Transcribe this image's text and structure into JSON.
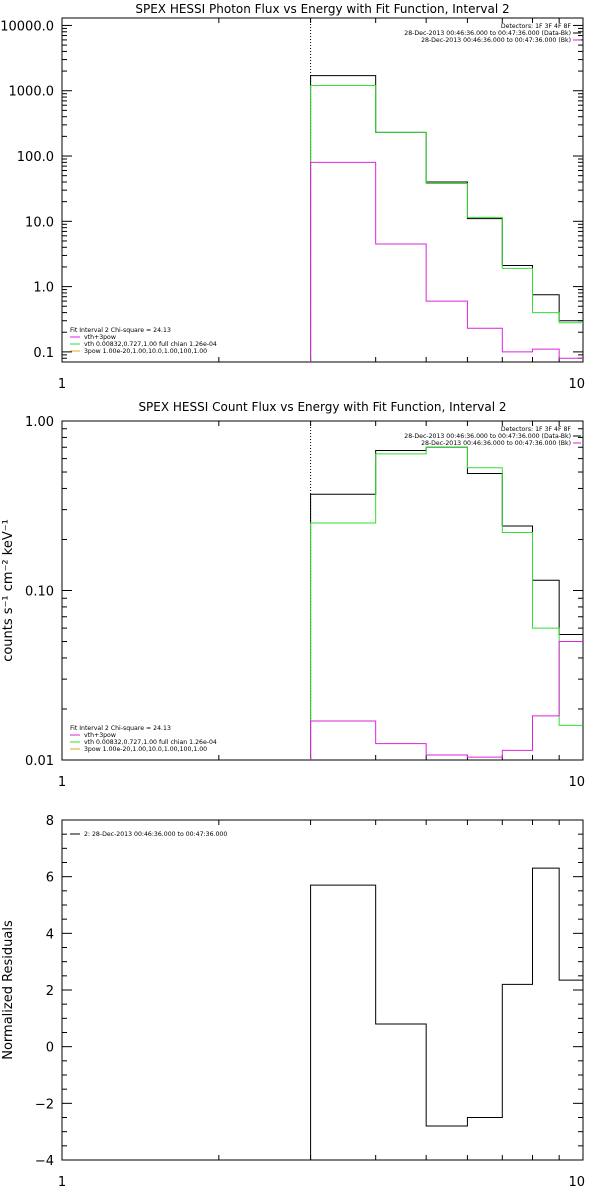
{
  "colors": {
    "black": "#000000",
    "green": "#33dd33",
    "magenta": "#dd22dd"
  },
  "chart_data": [
    {
      "type": "line",
      "title": "SPEX HESSI Photon Flux vs Energy with Fit Function, Interval 2",
      "xlabel": "",
      "ylabel": "",
      "xscale": "log",
      "yscale": "log",
      "xlim": [
        1,
        10
      ],
      "ylim": [
        0.07,
        13000
      ],
      "xticks": [
        "1",
        "10"
      ],
      "yticks": [
        {
          "v": 0.1,
          "label": "0.1"
        },
        {
          "v": 1,
          "label": "1.0"
        },
        {
          "v": 10,
          "label": "10.0"
        },
        {
          "v": 100,
          "label": "100.0"
        },
        {
          "v": 1000,
          "label": "1000.0"
        },
        {
          "v": 10000,
          "label": "10000.0"
        }
      ],
      "vline": 3,
      "bin_edges": [
        3,
        4,
        5,
        6,
        7,
        8,
        9,
        10
      ],
      "series": [
        {
          "color": "black",
          "values": [
            1700,
            230,
            40,
            11,
            2.1,
            0.75,
            0.3
          ]
        },
        {
          "color": "green",
          "values": [
            1200,
            230,
            38,
            11.5,
            1.9,
            0.4,
            0.28
          ]
        },
        {
          "color": "magenta",
          "values": [
            80,
            4.5,
            0.6,
            0.23,
            0.1,
            0.11,
            0.08
          ]
        }
      ],
      "legend_right": {
        "lines": [
          "Detectors: 1F 3F 4F 8F",
          "28-Dec-2013 00:46:36.000 to 00:47:36.000 (Data-Bk)",
          "28-Dec-2013 00:46:36.000 to 00:47:36.000 (Bk)"
        ],
        "colors": [
          "",
          "black",
          "magenta"
        ]
      },
      "legend_left": {
        "lines": [
          "Fit Interval  2   Chi-square = 24.13",
          "vth+3pow",
          "vth 0.00832,0.727,1.00  full chian 1.26e-04",
          "3pow 1.00e-20,1.00,10.0,1.00,100,1.00"
        ],
        "colors": [
          "",
          "magenta",
          "green",
          "orange"
        ]
      }
    },
    {
      "type": "line",
      "title": "SPEX HESSI Count Flux vs Energy with Fit Function, Interval 2",
      "xlabel": "",
      "ylabel": "counts s⁻¹ cm⁻² keV⁻¹",
      "xscale": "log",
      "yscale": "log",
      "xlim": [
        1,
        10
      ],
      "ylim": [
        0.01,
        1.0
      ],
      "xticks": [
        "1",
        "10"
      ],
      "yticks": [
        {
          "v": 0.01,
          "label": "0.01"
        },
        {
          "v": 0.1,
          "label": "0.10"
        },
        {
          "v": 1,
          "label": "1.00"
        }
      ],
      "vline": 3,
      "bin_edges": [
        3,
        4,
        5,
        6,
        7,
        8,
        9,
        10
      ],
      "series": [
        {
          "color": "black",
          "values": [
            0.37,
            0.67,
            0.7,
            0.49,
            0.24,
            0.115,
            0.055
          ]
        },
        {
          "color": "green",
          "values": [
            0.25,
            0.64,
            0.7,
            0.53,
            0.22,
            0.06,
            0.016
          ]
        },
        {
          "color": "magenta",
          "values": [
            0.017,
            0.0125,
            0.0107,
            0.0104,
            0.0114,
            0.0182,
            0.05
          ]
        }
      ],
      "legend_right": {
        "lines": [
          "Detectors: 1F 3F 4F 8F",
          "28-Dec-2013 00:46:36.000 to 00:47:36.000 (Data-Bk)",
          "28-Dec-2013 00:46:36.000 to 00:47:36.000 (Bk)"
        ],
        "colors": [
          "",
          "black",
          "magenta"
        ]
      },
      "legend_left": {
        "lines": [
          "Fit Interval  2   Chi-square = 24.13",
          "vth+3pow",
          "vth 0.00832,0.727,1.00  full chian 1.26e-04",
          "3pow 1.00e-20,1.00,10.0,1.00,100,1.00"
        ],
        "colors": [
          "",
          "magenta",
          "green",
          "orange"
        ]
      }
    },
    {
      "type": "line",
      "title": "",
      "xlabel": "",
      "ylabel": "Normalized Residuals",
      "xscale": "log",
      "yscale": "linear",
      "xlim": [
        1,
        10
      ],
      "ylim": [
        -4,
        8
      ],
      "xticks": [
        "1",
        "10"
      ],
      "yticks": [
        {
          "v": -4,
          "label": "−4"
        },
        {
          "v": -2,
          "label": "−2"
        },
        {
          "v": 0,
          "label": "0"
        },
        {
          "v": 2,
          "label": "2"
        },
        {
          "v": 4,
          "label": "4"
        },
        {
          "v": 6,
          "label": "6"
        },
        {
          "v": 8,
          "label": "8"
        }
      ],
      "bin_edges": [
        3,
        4,
        5,
        6,
        7,
        8,
        9,
        10
      ],
      "series": [
        {
          "color": "black",
          "values": [
            5.7,
            0.8,
            -2.8,
            -2.5,
            2.2,
            6.3,
            2.35
          ]
        }
      ],
      "legend_left": {
        "lines": [
          "2: 28-Dec-2013 00:46:36.000 to 00:47:36.000"
        ],
        "colors": [
          "black"
        ]
      }
    }
  ]
}
